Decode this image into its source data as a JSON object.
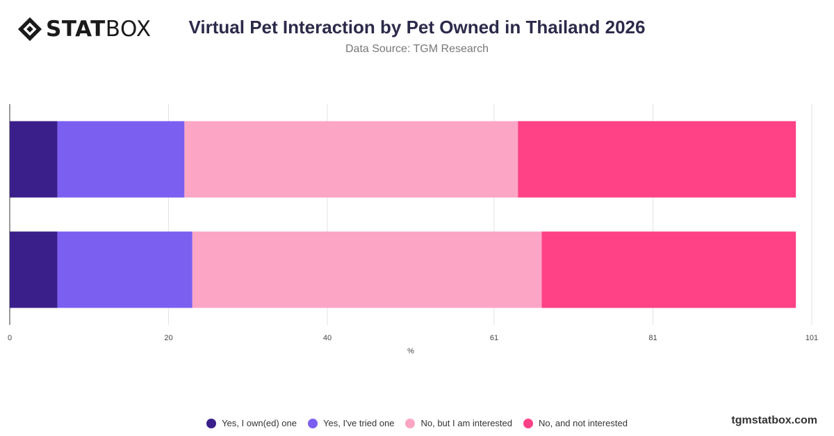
{
  "brand": {
    "logo_bold": "STAT",
    "logo_light": "BOX",
    "url": "tgmstatbox.com"
  },
  "chart_data": {
    "type": "bar",
    "orientation": "horizontal",
    "stacked": true,
    "title": "Virtual Pet Interaction by Pet Owned in Thailand 2026",
    "subtitle": "Data Source: TGM Research",
    "xlabel": "%",
    "ylabel": "",
    "xlim": [
      0,
      101
    ],
    "xticks": [
      0,
      20,
      40,
      61,
      81,
      101
    ],
    "grid": true,
    "legend_position": "bottom",
    "categories": [
      "",
      ""
    ],
    "series": [
      {
        "name": "Yes, I own(ed) one",
        "color": "#3a1f8a",
        "values": [
          6,
          6
        ]
      },
      {
        "name": "Yes, I've tried one",
        "color": "#7b5ff0",
        "values": [
          16,
          17
        ]
      },
      {
        "name": "No, but I am interested",
        "color": "#fca5c5",
        "values": [
          42,
          44
        ]
      },
      {
        "name": "No, and not interested",
        "color": "#ff4185",
        "values": [
          35,
          32
        ]
      }
    ]
  }
}
